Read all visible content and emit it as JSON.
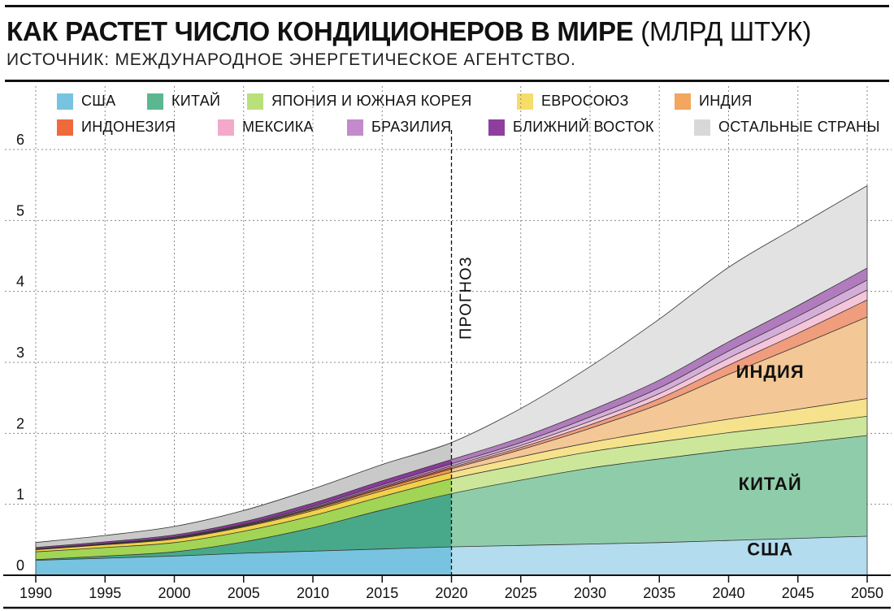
{
  "header": {
    "title_bold": "КАК РАСТЕТ ЧИСЛО КОНДИЦИОНЕРОВ В МИРЕ",
    "title_unit": "(МЛРД ШТУК)",
    "subtitle": "ИСТОЧНИК: МЕЖДУНАРОДНОЕ ЭНЕРГЕТИЧЕСКОЕ АГЕНТСТВО."
  },
  "legend": [
    {
      "label": "США",
      "color": "#78c3e0"
    },
    {
      "label": "КИТАЙ",
      "color": "#5bb78f"
    },
    {
      "label": "ЯПОНИЯ И ЮЖНАЯ КОРЕЯ",
      "color": "#b9e07a"
    },
    {
      "label": "ЕВРОСОЮЗ",
      "color": "#f6dd6a"
    },
    {
      "label": "ИНДИЯ",
      "color": "#f2a65e"
    },
    {
      "label": "ИНДОНЕЗИЯ",
      "color": "#ee6a3c"
    },
    {
      "label": "МЕКСИКА",
      "color": "#f3a9c7"
    },
    {
      "label": "БРАЗИЛИЯ",
      "color": "#c28bc9"
    },
    {
      "label": "БЛИЖНИЙ ВОСТОК",
      "color": "#8e3f9e"
    },
    {
      "label": "ОСТАЛЬНЫЕ СТРАНЫ",
      "color": "#d8d8d8"
    }
  ],
  "chart_data": {
    "type": "area",
    "stacked": true,
    "x": [
      1990,
      1995,
      2000,
      2005,
      2010,
      2015,
      2020,
      2025,
      2030,
      2035,
      2040,
      2045,
      2050
    ],
    "xticks": [
      "1990",
      "1995",
      "2000",
      "2005",
      "2010",
      "2015",
      "2020",
      "2025",
      "2030",
      "2035",
      "2040",
      "2045",
      "2050"
    ],
    "yticks": [
      "0",
      "1",
      "2",
      "3",
      "4",
      "5",
      "6"
    ],
    "ylim": [
      0,
      6
    ],
    "forecast_from": 2020,
    "forecast_label": "ПРОГНОЗ",
    "series": [
      {
        "name": "США",
        "color": "#78c3e0",
        "forecast_color": "#b3dcee",
        "values": [
          0.21,
          0.24,
          0.27,
          0.31,
          0.34,
          0.37,
          0.4,
          0.42,
          0.44,
          0.46,
          0.49,
          0.52,
          0.55
        ]
      },
      {
        "name": "КИТАЙ",
        "color": "#48a98a",
        "forecast_color": "#8fcdaa",
        "values": [
          0.01,
          0.03,
          0.06,
          0.16,
          0.33,
          0.55,
          0.75,
          0.92,
          1.07,
          1.18,
          1.27,
          1.34,
          1.42
        ]
      },
      {
        "name": "ЯПОНИЯ И ЮЖНАЯ КОРЕЯ",
        "color": "#a2d455",
        "forecast_color": "#cce79a",
        "values": [
          0.11,
          0.12,
          0.13,
          0.15,
          0.17,
          0.19,
          0.21,
          0.22,
          0.23,
          0.24,
          0.25,
          0.26,
          0.27
        ]
      },
      {
        "name": "ЕВРОСОЮЗ",
        "color": "#f1d14a",
        "forecast_color": "#f6e28c",
        "values": [
          0.03,
          0.04,
          0.05,
          0.06,
          0.07,
          0.08,
          0.09,
          0.11,
          0.13,
          0.16,
          0.19,
          0.22,
          0.25
        ]
      },
      {
        "name": "ИНДИЯ",
        "color": "#ef9a4e",
        "forecast_color": "#f4c796",
        "values": [
          0.005,
          0.005,
          0.01,
          0.01,
          0.02,
          0.03,
          0.05,
          0.1,
          0.2,
          0.37,
          0.63,
          0.89,
          1.15
        ]
      },
      {
        "name": "ИНДОНЕЗИЯ",
        "color": "#e45c32",
        "forecast_color": "#ef9d7c",
        "values": [
          0.002,
          0.003,
          0.005,
          0.008,
          0.012,
          0.016,
          0.02,
          0.03,
          0.05,
          0.08,
          0.13,
          0.18,
          0.24
        ]
      },
      {
        "name": "МЕКСИКА",
        "color": "#ee9cbf",
        "forecast_color": "#f5c6da",
        "values": [
          0.002,
          0.003,
          0.005,
          0.008,
          0.012,
          0.016,
          0.02,
          0.03,
          0.05,
          0.07,
          0.1,
          0.12,
          0.14
        ]
      },
      {
        "name": "БРАЗИЛИЯ",
        "color": "#bf82c6",
        "forecast_color": "#d4aed9",
        "values": [
          0.003,
          0.005,
          0.008,
          0.012,
          0.018,
          0.024,
          0.03,
          0.04,
          0.06,
          0.08,
          0.1,
          0.12,
          0.14
        ]
      },
      {
        "name": "БЛИЖНИЙ ВОСТОК",
        "color": "#8b3a9b",
        "forecast_color": "#b07cbd",
        "values": [
          0.02,
          0.025,
          0.03,
          0.035,
          0.045,
          0.055,
          0.06,
          0.07,
          0.09,
          0.11,
          0.13,
          0.15,
          0.17
        ]
      },
      {
        "name": "ОСТАЛЬНЫЕ СТРАНЫ",
        "color": "#c9c9c9",
        "forecast_color": "#e2e2e2",
        "values": [
          0.07,
          0.09,
          0.12,
          0.16,
          0.2,
          0.23,
          0.24,
          0.41,
          0.62,
          0.86,
          1.05,
          1.12,
          1.16
        ]
      }
    ],
    "annotations": [
      {
        "text": "ИНДИЯ",
        "x": 2043,
        "y": 2.78
      },
      {
        "text": "КИТАЙ",
        "x": 2043,
        "y": 1.2
      },
      {
        "text": "США",
        "x": 2043,
        "y": 0.28
      }
    ]
  }
}
